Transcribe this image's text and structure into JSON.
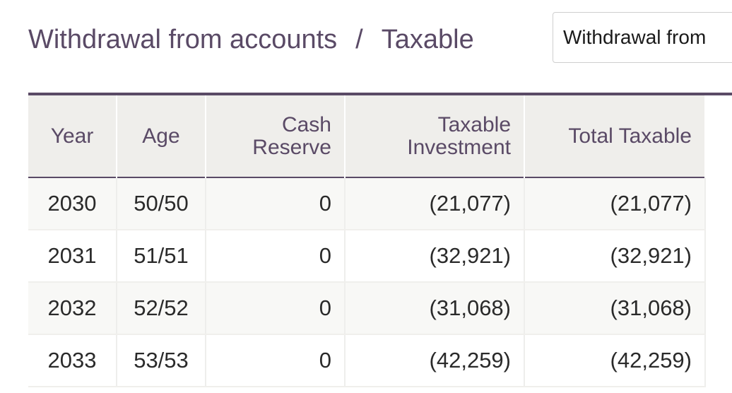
{
  "header": {
    "title": "Withdrawal from accounts",
    "separator": "/",
    "subtitle": "Taxable"
  },
  "view_select": {
    "value": "Withdrawal from"
  },
  "table": {
    "columns": {
      "year": "Year",
      "age": "Age",
      "cash_reserve_line1": "Cash",
      "cash_reserve_line2": "Reserve",
      "taxable_investment_line1": "Taxable",
      "taxable_investment_line2": "Investment",
      "total_taxable": "Total Taxable"
    },
    "rows": [
      {
        "year": "2030",
        "age": "50/50",
        "cash_reserve": "0",
        "taxable_investment": "(21,077)",
        "total_taxable": "(21,077)"
      },
      {
        "year": "2031",
        "age": "51/51",
        "cash_reserve": "0",
        "taxable_investment": "(32,921)",
        "total_taxable": "(32,921)"
      },
      {
        "year": "2032",
        "age": "52/52",
        "cash_reserve": "0",
        "taxable_investment": "(31,068)",
        "total_taxable": "(31,068)"
      },
      {
        "year": "2033",
        "age": "53/53",
        "cash_reserve": "0",
        "taxable_investment": "(42,259)",
        "total_taxable": "(42,259)"
      }
    ]
  },
  "colors": {
    "header_text": "#5a4a66",
    "header_bg": "#efeeeb",
    "rule": "#5a4a66"
  }
}
